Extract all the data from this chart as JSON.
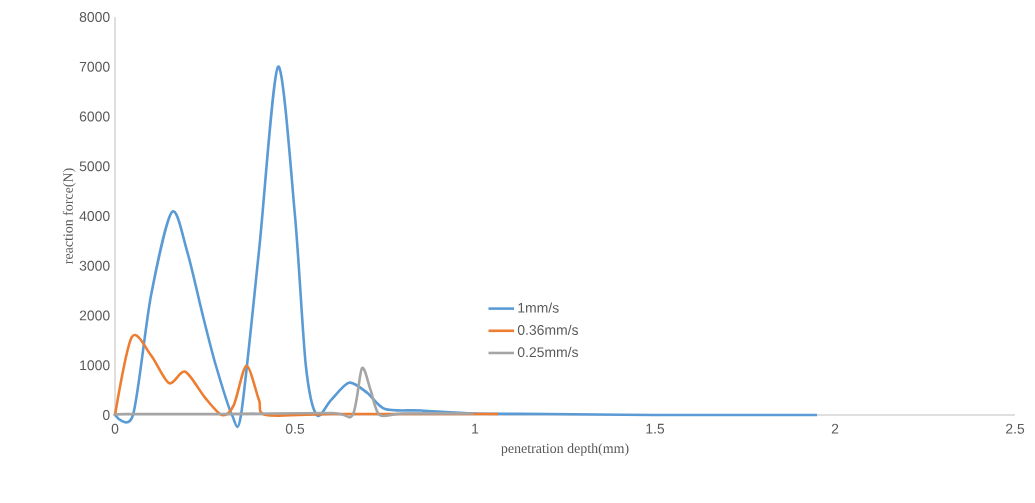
{
  "chart_data": {
    "type": "line",
    "xlabel": "penetration depth(mm)",
    "ylabel": "reaction force(N)",
    "xlim": [
      0,
      2.5
    ],
    "ylim": [
      0,
      8000
    ],
    "xticks": [
      0,
      0.5,
      1,
      1.5,
      2,
      2.5
    ],
    "yticks": [
      0,
      1000,
      2000,
      3000,
      4000,
      5000,
      6000,
      7000,
      8000
    ],
    "grid": false,
    "legend": "center",
    "marker": "none",
    "line_style": "solid",
    "series": [
      {
        "name": "1mm/s",
        "color": "#5b9bd5",
        "x": [
          0,
          0.05,
          0.1,
          0.158,
          0.2,
          0.245,
          0.28,
          0.325,
          0.35,
          0.4,
          0.453,
          0.5,
          0.53,
          0.56,
          0.6,
          0.65,
          0.7,
          0.75,
          0.85,
          1.0,
          1.2,
          1.5,
          1.95
        ],
        "values": [
          0,
          0,
          2400,
          4080,
          3300,
          1970,
          1000,
          0,
          0,
          3300,
          7000,
          4000,
          1000,
          0,
          300,
          650,
          450,
          120,
          90,
          30,
          20,
          0,
          0
        ]
      },
      {
        "name": "0.36mm/s",
        "color": "#ed7d31",
        "x": [
          0,
          0.047,
          0.1,
          0.15,
          0.195,
          0.25,
          0.297,
          0.33,
          0.365,
          0.4,
          0.42,
          0.6,
          0.8,
          1.064
        ],
        "values": [
          0,
          1570,
          1200,
          640,
          870,
          350,
          0,
          200,
          990,
          300,
          0,
          20,
          20,
          20
        ]
      },
      {
        "name": "0.25mm/s",
        "color": "#a5a5a5",
        "x": [
          0,
          0.03,
          0.3,
          0.6,
          0.66,
          0.686,
          0.71,
          0.735,
          0.8,
          0.995
        ],
        "values": [
          0,
          20,
          20,
          40,
          0,
          940,
          500,
          0,
          30,
          30
        ]
      }
    ]
  }
}
